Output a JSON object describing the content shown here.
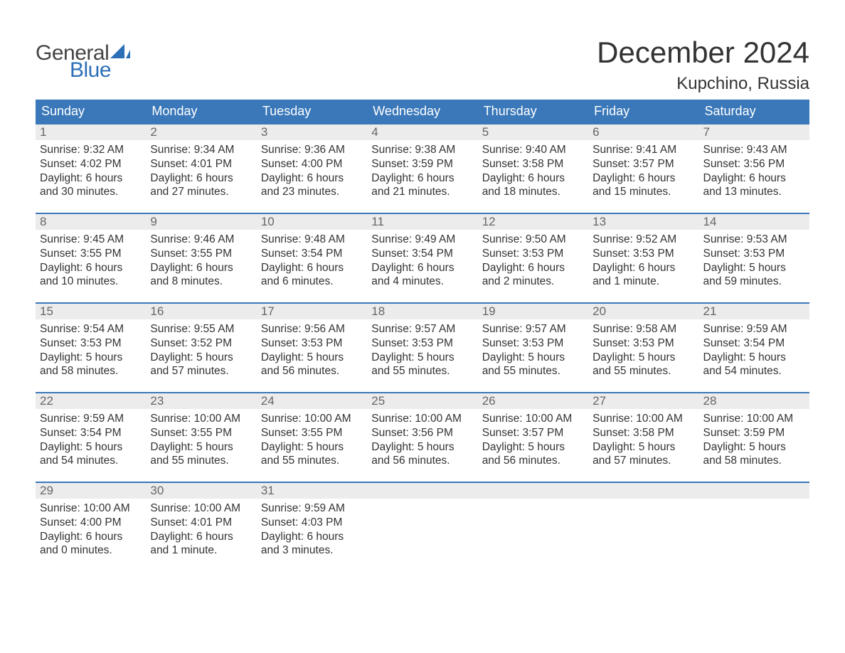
{
  "brand": {
    "word1": "General",
    "word2": "Blue",
    "icon_color": "#2d6fb6",
    "word1_color": "#444444",
    "word2_color": "#2d6fb6"
  },
  "title": "December 2024",
  "location": "Kupchino, Russia",
  "colors": {
    "header_bg": "#3a78b9",
    "header_text": "#ffffff",
    "daynum_bg": "#ececec",
    "daynum_text": "#666666",
    "body_text": "#333333",
    "row_border": "#3a78b9",
    "page_bg": "#ffffff"
  },
  "weekdays": [
    "Sunday",
    "Monday",
    "Tuesday",
    "Wednesday",
    "Thursday",
    "Friday",
    "Saturday"
  ],
  "weeks": [
    [
      {
        "n": "1",
        "sunrise": "Sunrise: 9:32 AM",
        "sunset": "Sunset: 4:02 PM",
        "day1": "Daylight: 6 hours",
        "day2": "and 30 minutes."
      },
      {
        "n": "2",
        "sunrise": "Sunrise: 9:34 AM",
        "sunset": "Sunset: 4:01 PM",
        "day1": "Daylight: 6 hours",
        "day2": "and 27 minutes."
      },
      {
        "n": "3",
        "sunrise": "Sunrise: 9:36 AM",
        "sunset": "Sunset: 4:00 PM",
        "day1": "Daylight: 6 hours",
        "day2": "and 23 minutes."
      },
      {
        "n": "4",
        "sunrise": "Sunrise: 9:38 AM",
        "sunset": "Sunset: 3:59 PM",
        "day1": "Daylight: 6 hours",
        "day2": "and 21 minutes."
      },
      {
        "n": "5",
        "sunrise": "Sunrise: 9:40 AM",
        "sunset": "Sunset: 3:58 PM",
        "day1": "Daylight: 6 hours",
        "day2": "and 18 minutes."
      },
      {
        "n": "6",
        "sunrise": "Sunrise: 9:41 AM",
        "sunset": "Sunset: 3:57 PM",
        "day1": "Daylight: 6 hours",
        "day2": "and 15 minutes."
      },
      {
        "n": "7",
        "sunrise": "Sunrise: 9:43 AM",
        "sunset": "Sunset: 3:56 PM",
        "day1": "Daylight: 6 hours",
        "day2": "and 13 minutes."
      }
    ],
    [
      {
        "n": "8",
        "sunrise": "Sunrise: 9:45 AM",
        "sunset": "Sunset: 3:55 PM",
        "day1": "Daylight: 6 hours",
        "day2": "and 10 minutes."
      },
      {
        "n": "9",
        "sunrise": "Sunrise: 9:46 AM",
        "sunset": "Sunset: 3:55 PM",
        "day1": "Daylight: 6 hours",
        "day2": "and 8 minutes."
      },
      {
        "n": "10",
        "sunrise": "Sunrise: 9:48 AM",
        "sunset": "Sunset: 3:54 PM",
        "day1": "Daylight: 6 hours",
        "day2": "and 6 minutes."
      },
      {
        "n": "11",
        "sunrise": "Sunrise: 9:49 AM",
        "sunset": "Sunset: 3:54 PM",
        "day1": "Daylight: 6 hours",
        "day2": "and 4 minutes."
      },
      {
        "n": "12",
        "sunrise": "Sunrise: 9:50 AM",
        "sunset": "Sunset: 3:53 PM",
        "day1": "Daylight: 6 hours",
        "day2": "and 2 minutes."
      },
      {
        "n": "13",
        "sunrise": "Sunrise: 9:52 AM",
        "sunset": "Sunset: 3:53 PM",
        "day1": "Daylight: 6 hours",
        "day2": "and 1 minute."
      },
      {
        "n": "14",
        "sunrise": "Sunrise: 9:53 AM",
        "sunset": "Sunset: 3:53 PM",
        "day1": "Daylight: 5 hours",
        "day2": "and 59 minutes."
      }
    ],
    [
      {
        "n": "15",
        "sunrise": "Sunrise: 9:54 AM",
        "sunset": "Sunset: 3:53 PM",
        "day1": "Daylight: 5 hours",
        "day2": "and 58 minutes."
      },
      {
        "n": "16",
        "sunrise": "Sunrise: 9:55 AM",
        "sunset": "Sunset: 3:52 PM",
        "day1": "Daylight: 5 hours",
        "day2": "and 57 minutes."
      },
      {
        "n": "17",
        "sunrise": "Sunrise: 9:56 AM",
        "sunset": "Sunset: 3:53 PM",
        "day1": "Daylight: 5 hours",
        "day2": "and 56 minutes."
      },
      {
        "n": "18",
        "sunrise": "Sunrise: 9:57 AM",
        "sunset": "Sunset: 3:53 PM",
        "day1": "Daylight: 5 hours",
        "day2": "and 55 minutes."
      },
      {
        "n": "19",
        "sunrise": "Sunrise: 9:57 AM",
        "sunset": "Sunset: 3:53 PM",
        "day1": "Daylight: 5 hours",
        "day2": "and 55 minutes."
      },
      {
        "n": "20",
        "sunrise": "Sunrise: 9:58 AM",
        "sunset": "Sunset: 3:53 PM",
        "day1": "Daylight: 5 hours",
        "day2": "and 55 minutes."
      },
      {
        "n": "21",
        "sunrise": "Sunrise: 9:59 AM",
        "sunset": "Sunset: 3:54 PM",
        "day1": "Daylight: 5 hours",
        "day2": "and 54 minutes."
      }
    ],
    [
      {
        "n": "22",
        "sunrise": "Sunrise: 9:59 AM",
        "sunset": "Sunset: 3:54 PM",
        "day1": "Daylight: 5 hours",
        "day2": "and 54 minutes."
      },
      {
        "n": "23",
        "sunrise": "Sunrise: 10:00 AM",
        "sunset": "Sunset: 3:55 PM",
        "day1": "Daylight: 5 hours",
        "day2": "and 55 minutes."
      },
      {
        "n": "24",
        "sunrise": "Sunrise: 10:00 AM",
        "sunset": "Sunset: 3:55 PM",
        "day1": "Daylight: 5 hours",
        "day2": "and 55 minutes."
      },
      {
        "n": "25",
        "sunrise": "Sunrise: 10:00 AM",
        "sunset": "Sunset: 3:56 PM",
        "day1": "Daylight: 5 hours",
        "day2": "and 56 minutes."
      },
      {
        "n": "26",
        "sunrise": "Sunrise: 10:00 AM",
        "sunset": "Sunset: 3:57 PM",
        "day1": "Daylight: 5 hours",
        "day2": "and 56 minutes."
      },
      {
        "n": "27",
        "sunrise": "Sunrise: 10:00 AM",
        "sunset": "Sunset: 3:58 PM",
        "day1": "Daylight: 5 hours",
        "day2": "and 57 minutes."
      },
      {
        "n": "28",
        "sunrise": "Sunrise: 10:00 AM",
        "sunset": "Sunset: 3:59 PM",
        "day1": "Daylight: 5 hours",
        "day2": "and 58 minutes."
      }
    ],
    [
      {
        "n": "29",
        "sunrise": "Sunrise: 10:00 AM",
        "sunset": "Sunset: 4:00 PM",
        "day1": "Daylight: 6 hours",
        "day2": "and 0 minutes."
      },
      {
        "n": "30",
        "sunrise": "Sunrise: 10:00 AM",
        "sunset": "Sunset: 4:01 PM",
        "day1": "Daylight: 6 hours",
        "day2": "and 1 minute."
      },
      {
        "n": "31",
        "sunrise": "Sunrise: 9:59 AM",
        "sunset": "Sunset: 4:03 PM",
        "day1": "Daylight: 6 hours",
        "day2": "and 3 minutes."
      },
      {
        "empty": true
      },
      {
        "empty": true
      },
      {
        "empty": true
      },
      {
        "empty": true
      }
    ]
  ]
}
